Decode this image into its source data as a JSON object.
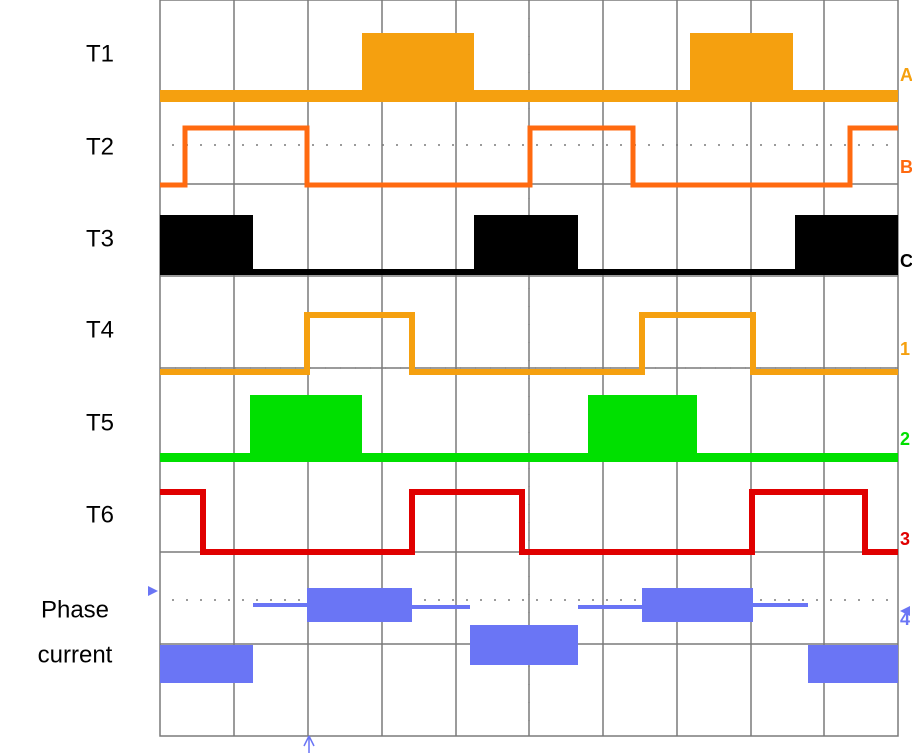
{
  "traces": [
    {
      "label": "T1",
      "marker": "A"
    },
    {
      "label": "T2",
      "marker": "B"
    },
    {
      "label": "T3",
      "marker": "C"
    },
    {
      "label": "T4",
      "marker": "1"
    },
    {
      "label": "T5",
      "marker": "2"
    },
    {
      "label": "T6",
      "marker": "3"
    },
    {
      "label_lines": [
        "Phase",
        "current"
      ],
      "marker": "4"
    }
  ]
}
